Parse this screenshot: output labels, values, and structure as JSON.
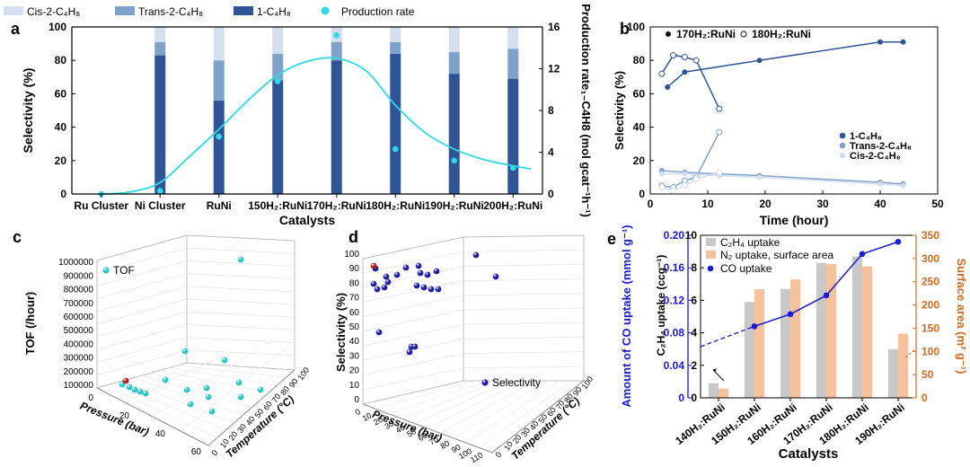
{
  "colors": {
    "cis": "#d3dfef",
    "trans": "#7ea2c9",
    "one": "#2f5597",
    "rate": "#2fd9e6",
    "gray": "#c8c8c8",
    "peach": "#f6c29d",
    "blue": "#1a1ad6",
    "orange": "#d2691e",
    "sphere_cyan": "#29c6c6",
    "sphere_blue": "#1d1d9e",
    "sphere_red": "#c0180c"
  },
  "chart_data": [
    {
      "panel": "a",
      "type": "bar",
      "stacked": true,
      "categories": [
        "Ru Cluster",
        "Ni Cluster",
        "RuNi",
        "150H₂:RuNi",
        "170H₂:RuNi",
        "180H₂:RuNi",
        "190H₂:RuNi",
        "200H₂:RuNi"
      ],
      "series": [
        {
          "name": "1-C₄H₈",
          "values": [
            0,
            83,
            56,
            68,
            80,
            84,
            72,
            69
          ]
        },
        {
          "name": "Trans-2-C₄H₈",
          "values": [
            0,
            8,
            24,
            16,
            11,
            7,
            13,
            18
          ]
        },
        {
          "name": "Cis-2-C₄H₈",
          "values": [
            0,
            9,
            20,
            16,
            9,
            9,
            15,
            13
          ]
        }
      ],
      "rate": {
        "name": "Production rate",
        "values": [
          0,
          0.3,
          5.5,
          10.8,
          15.2,
          4.3,
          3.2,
          2.5
        ]
      },
      "rate_curve": {
        "x": [
          0,
          0.5,
          1,
          1.5,
          2,
          2.5,
          3,
          3.5,
          4,
          4.5,
          5,
          5.5,
          6,
          6.5,
          7,
          7.3
        ],
        "y": [
          0,
          0.2,
          1.1,
          3.6,
          6.2,
          9.0,
          11.4,
          12.7,
          13.0,
          11.8,
          8.5,
          5.9,
          4.3,
          3.3,
          2.7,
          2.4
        ]
      },
      "legend": [
        "Cis-2-C₄H₈",
        "Trans-2-C₄H₈",
        "1-C₄H₈",
        "Production rate"
      ],
      "xlabel": "Catalysts",
      "ylabel": "Selectivity (%)",
      "ylim": [
        0,
        100
      ],
      "yticks": [
        0,
        20,
        40,
        60,
        80,
        100
      ],
      "y2label": "Production rate₁₋C4H8 (mol gcat⁻¹h⁻¹)",
      "y2lim": [
        0,
        16
      ],
      "y2ticks": [
        0,
        4,
        8,
        12,
        16
      ]
    },
    {
      "panel": "b",
      "type": "line",
      "legend_top": [
        "170H₂:RuNi",
        "180H₂:RuNi"
      ],
      "legend_side": [
        "1-C₄H₈",
        "Trans-2-C₄H₈",
        "Cis-2-C₄H₈"
      ],
      "series": [
        {
          "name": "170H₂:RuNi 1-C₄H₈",
          "x": [
            3,
            6,
            19,
            40,
            44
          ],
          "y": [
            64,
            73,
            80,
            91,
            91
          ]
        },
        {
          "name": "180H₂:RuNi 1-C₄H₈",
          "x": [
            2,
            4,
            6,
            8,
            12
          ],
          "y": [
            72,
            83,
            82,
            80,
            51
          ]
        },
        {
          "name": "170H₂:RuNi Trans-2-C₄H₈",
          "x": [
            2,
            6,
            12,
            19,
            40,
            44
          ],
          "y": [
            14,
            13,
            12,
            11,
            7,
            6
          ]
        },
        {
          "name": "180H₂:RuNi Trans-2-C₄H₈",
          "x": [
            2,
            4,
            6,
            8,
            12
          ],
          "y": [
            5,
            4,
            8,
            10,
            37
          ]
        },
        {
          "name": "170H₂:RuNi Cis-2-C₄H₈",
          "x": [
            2,
            6,
            12,
            19,
            40,
            44
          ],
          "y": [
            12,
            12,
            11,
            10,
            6,
            5
          ]
        },
        {
          "name": "180H₂:RuNi Cis-2-C₄H₈",
          "x": [
            2,
            4,
            6,
            8,
            12
          ],
          "y": [
            4,
            2,
            5,
            9,
            13
          ]
        }
      ],
      "xlabel": "Time (hour)",
      "ylabel": "Selectivity (%)",
      "xlim": [
        0,
        50
      ],
      "xticks": [
        0,
        10,
        20,
        30,
        40,
        50
      ],
      "ylim": [
        0,
        100
      ],
      "yticks": [
        0,
        20,
        40,
        60,
        80,
        100
      ]
    },
    {
      "panel": "c",
      "type": "scatter",
      "note": "3D scatter of TOF vs pressure and temperature",
      "legend": "TOF",
      "zlabel": "TOF (/hour)",
      "zticks": [
        "100000",
        "200000",
        "300000",
        "400000",
        "500000",
        "600000",
        "700000",
        "800000",
        "900000",
        "1000000"
      ],
      "xlabel": "Pressure (bar)",
      "xticks": [
        "0",
        "20",
        "40",
        "60"
      ],
      "ylabel": "Temperature (°C)",
      "yticks": [
        "0",
        "10",
        "20",
        "30",
        "40",
        "50",
        "60",
        "70",
        "80",
        "90",
        "100"
      ]
    },
    {
      "panel": "d",
      "type": "scatter",
      "note": "3D scatter of selectivity vs pressure and temperature",
      "legend": "Selectivity",
      "zlabel": "Selectivity (%)",
      "zticks": [
        "0",
        "10",
        "20",
        "30",
        "40",
        "50",
        "60",
        "70",
        "80",
        "90",
        "100"
      ],
      "xlabel": "Pressure (bar)",
      "xticks": [
        "0",
        "10",
        "20",
        "30",
        "40",
        "50",
        "60",
        "70",
        "80",
        "90",
        "100",
        "110"
      ],
      "ylabel": "Temperature (°C)",
      "yticks": [
        "0",
        "10",
        "20",
        "30",
        "40",
        "50",
        "60",
        "70",
        "80",
        "90",
        "100"
      ]
    },
    {
      "panel": "e",
      "type": "bar",
      "categories": [
        "140H₂:RuNi",
        "150H₂:RuNi",
        "160H₂:RuNi",
        "170H₂:RuNi",
        "180H₂:RuNi",
        "190H₂:RuNi"
      ],
      "series": [
        {
          "name": "C₂H₄ uptake",
          "axis": "ccg⁻¹",
          "values": [
            0.9,
            5.9,
            6.7,
            8.3,
            8.7,
            3.0
          ]
        },
        {
          "name": "N₂ uptake, surface area",
          "axis": "m² g⁻¹",
          "values": [
            20,
            234,
            255,
            288,
            283,
            138
          ]
        },
        {
          "name": "CO uptake",
          "axis": "mmol g⁻¹",
          "values": [
            null,
            0.088,
            0.103,
            0.126,
            0.177,
            0.192
          ]
        }
      ],
      "co_extrapolation_start": 0.063,
      "legend": [
        "C₂H₄ uptake",
        "N₂ uptake, surface area",
        "CO uptake"
      ],
      "xlabel": "Catalysts",
      "ylabel_left": "Amount of CO uptake (mmol g⁻¹)",
      "ylim_left": [
        0,
        0.2
      ],
      "yticks_left": [
        "0",
        "0.04",
        "0.08",
        "0.12",
        "0.16",
        "0.20"
      ],
      "ylabel_mid": "C₂H₄ uptake (ccg⁻¹)",
      "ylim_mid": [
        0,
        10
      ],
      "yticks_mid": [
        "0",
        "2",
        "4",
        "6",
        "8",
        "10"
      ],
      "ylabel_right": "Surface area (m² g⁻¹)",
      "ylim_right": [
        0,
        350
      ],
      "yticks_right": [
        "0",
        "50",
        "100",
        "150",
        "200",
        "250",
        "300",
        "350"
      ]
    }
  ],
  "panel_labels": [
    "a",
    "b",
    "c",
    "d",
    "e"
  ]
}
